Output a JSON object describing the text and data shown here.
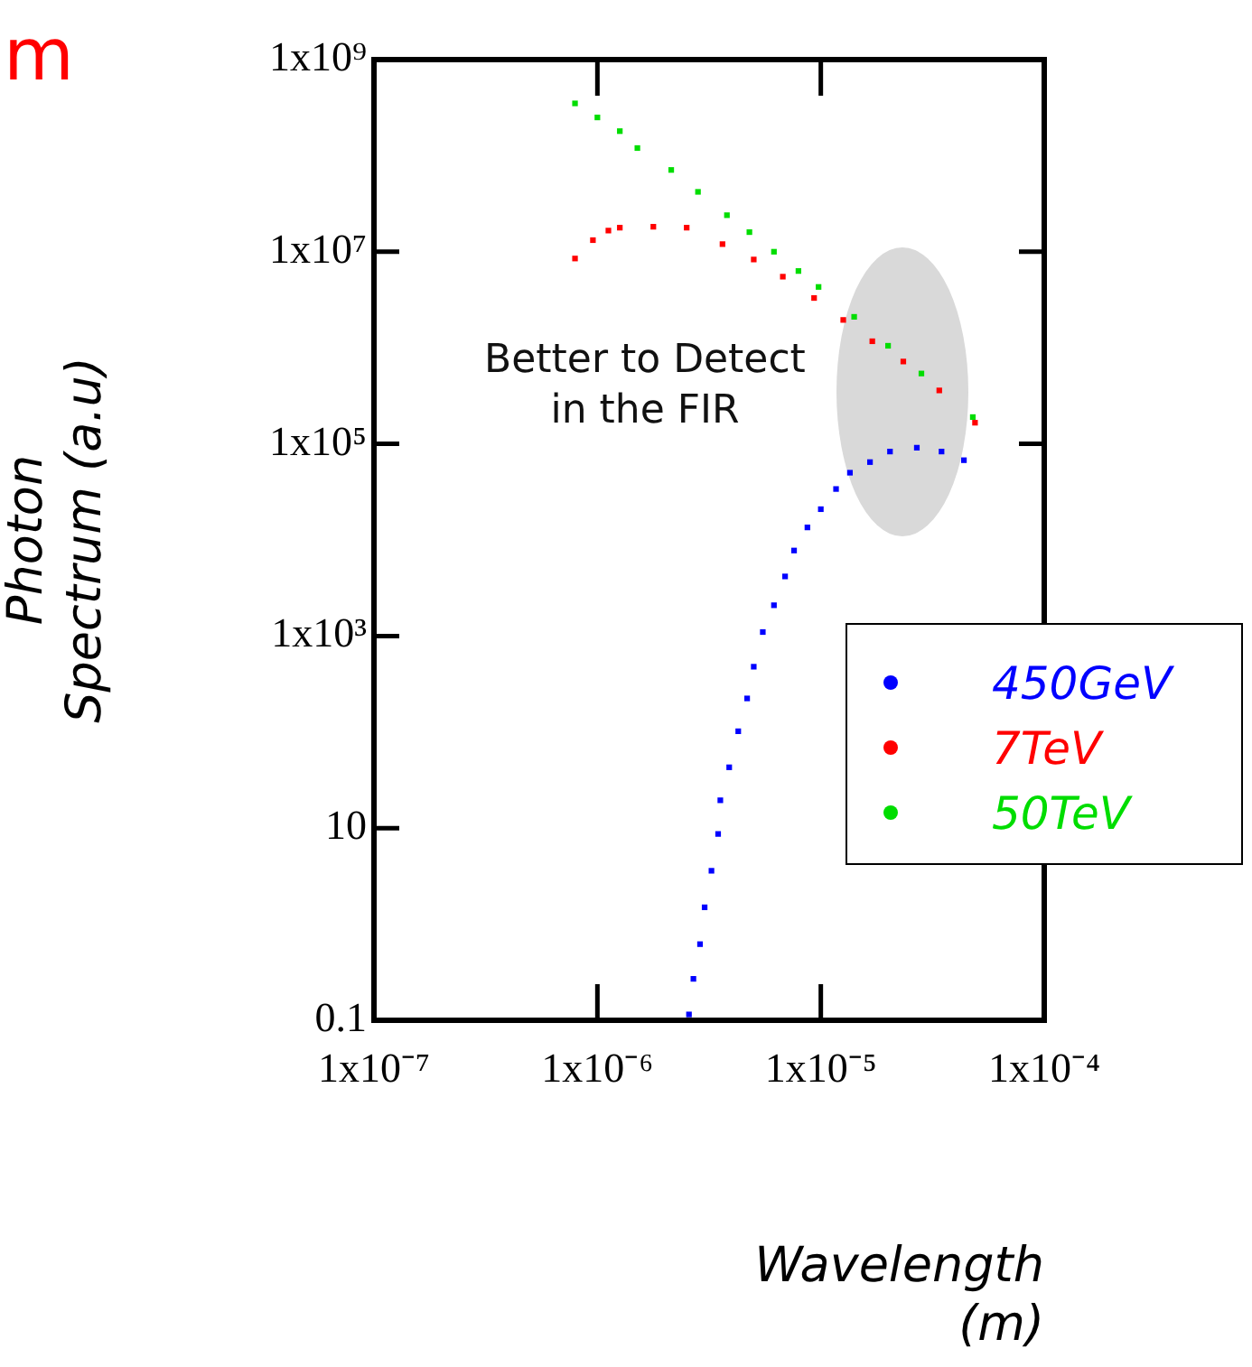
{
  "chart_data": {
    "type": "scatter",
    "xlabel": "Wavelength (m)",
    "ylabel": "Photon Spectrum (a.u)",
    "log": "xy",
    "grid": false,
    "legend": "right",
    "marker": "square",
    "xlim": [
      1e-07,
      0.0001
    ],
    "ylim": [
      0.1,
      1000000000.0
    ],
    "xticks": [
      {
        "value": 1e-07,
        "label": "1x10⁻⁷"
      },
      {
        "value": 1e-06,
        "label": "1x10⁻⁶"
      },
      {
        "value": 1e-05,
        "label": "1x10⁻⁵"
      },
      {
        "value": 0.0001,
        "label": "1x10⁻⁴"
      }
    ],
    "yticks": [
      0.1,
      10,
      {
        "value": 1000,
        "label": "1x10³"
      },
      {
        "value": 100000,
        "label": "1x10⁵"
      },
      {
        "value": 10000000,
        "label": "1x10⁷"
      },
      {
        "value": 1000000000,
        "label": "1x10⁹"
      }
    ],
    "annotations": [
      "m",
      "Better to Detect\nin the FIR"
    ],
    "series": [
      {
        "name": "450GeV",
        "color": "#0000ff",
        "x": [
          2.57e-06,
          2.69e-06,
          2.88e-06,
          3.02e-06,
          3.24e-06,
          3.47e-06,
          3.55e-06,
          3.89e-06,
          4.27e-06,
          4.68e-06,
          5.01e-06,
          5.5e-06,
          6.17e-06,
          6.92e-06,
          7.59e-06,
          8.71e-06,
          1e-05,
          1.17e-05,
          1.35e-05,
          1.66e-05,
          2.04e-05,
          2.69e-05,
          3.47e-05,
          4.37e-05
        ],
        "values": [
          0.115,
          0.27,
          0.62,
          1.5,
          3.6,
          8.7,
          19.5,
          43,
          102,
          224,
          479,
          1100,
          2090,
          4170,
          7760,
          13500,
          20900,
          33900,
          50100,
          64600,
          83200,
          91200,
          83200,
          67600
        ]
      },
      {
        "name": "7TeV",
        "color": "#ff0000",
        "x": [
          7.94e-07,
          9.55e-07,
          1.12e-06,
          1.26e-06,
          1.78e-06,
          2.51e-06,
          3.63e-06,
          5.01e-06,
          6.76e-06,
          9.33e-06,
          1.26e-05,
          1.7e-05,
          2.34e-05,
          3.39e-05,
          4.9e-05
        ],
        "values": [
          8500000.0,
          13200000.0,
          16600000.0,
          17800000.0,
          18200000.0,
          17800000.0,
          12000000.0,
          8300000.0,
          5500000.0,
          3300000.0,
          1950000.0,
          1170000.0,
          720000.0,
          360000.0,
          166000.0
        ]
      },
      {
        "name": "50TeV",
        "color": "#00dd00",
        "x": [
          7.94e-07,
          1e-06,
          1.26e-06,
          1.51e-06,
          2.14e-06,
          2.82e-06,
          3.8e-06,
          4.79e-06,
          6.17e-06,
          7.94e-06,
          9.77e-06,
          1.41e-05,
          2e-05,
          2.82e-05,
          4.79e-05
        ],
        "values": [
          350000000.0,
          250000000.0,
          180000000.0,
          120000000.0,
          71000000.0,
          42000000.0,
          24000000.0,
          16000000.0,
          10000000.0,
          6300000.0,
          4300000.0,
          2100000.0,
          1050000.0,
          540000.0,
          190000.0
        ]
      }
    ]
  }
}
